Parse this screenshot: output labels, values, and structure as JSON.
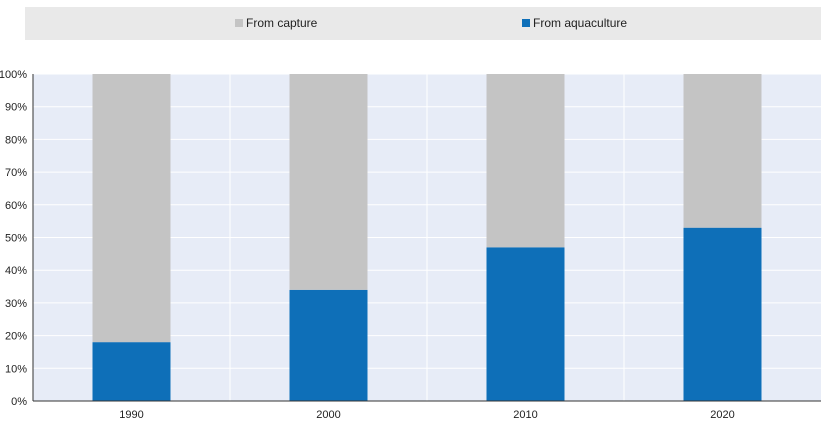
{
  "legend": {
    "items": [
      {
        "label": "From capture",
        "color": "#c4c4c4"
      },
      {
        "label": "From aquaculture",
        "color": "#0e6fb8"
      }
    ]
  },
  "chart_data": {
    "type": "bar",
    "stacked": true,
    "categories": [
      "1990",
      "2000",
      "2010",
      "2020"
    ],
    "series": [
      {
        "name": "From aquaculture",
        "color": "#0e6fb8",
        "values": [
          18,
          34,
          47,
          53
        ]
      },
      {
        "name": "From capture",
        "color": "#c4c4c4",
        "values": [
          82,
          66,
          53,
          47
        ]
      }
    ],
    "ylim": [
      0,
      100
    ],
    "yticks": [
      "0%",
      "10%",
      "20%",
      "30%",
      "40%",
      "50%",
      "60%",
      "70%",
      "80%",
      "90%",
      "100%"
    ],
    "grid": true,
    "legend_position": "top",
    "plot_background": "#e7ecf7"
  }
}
